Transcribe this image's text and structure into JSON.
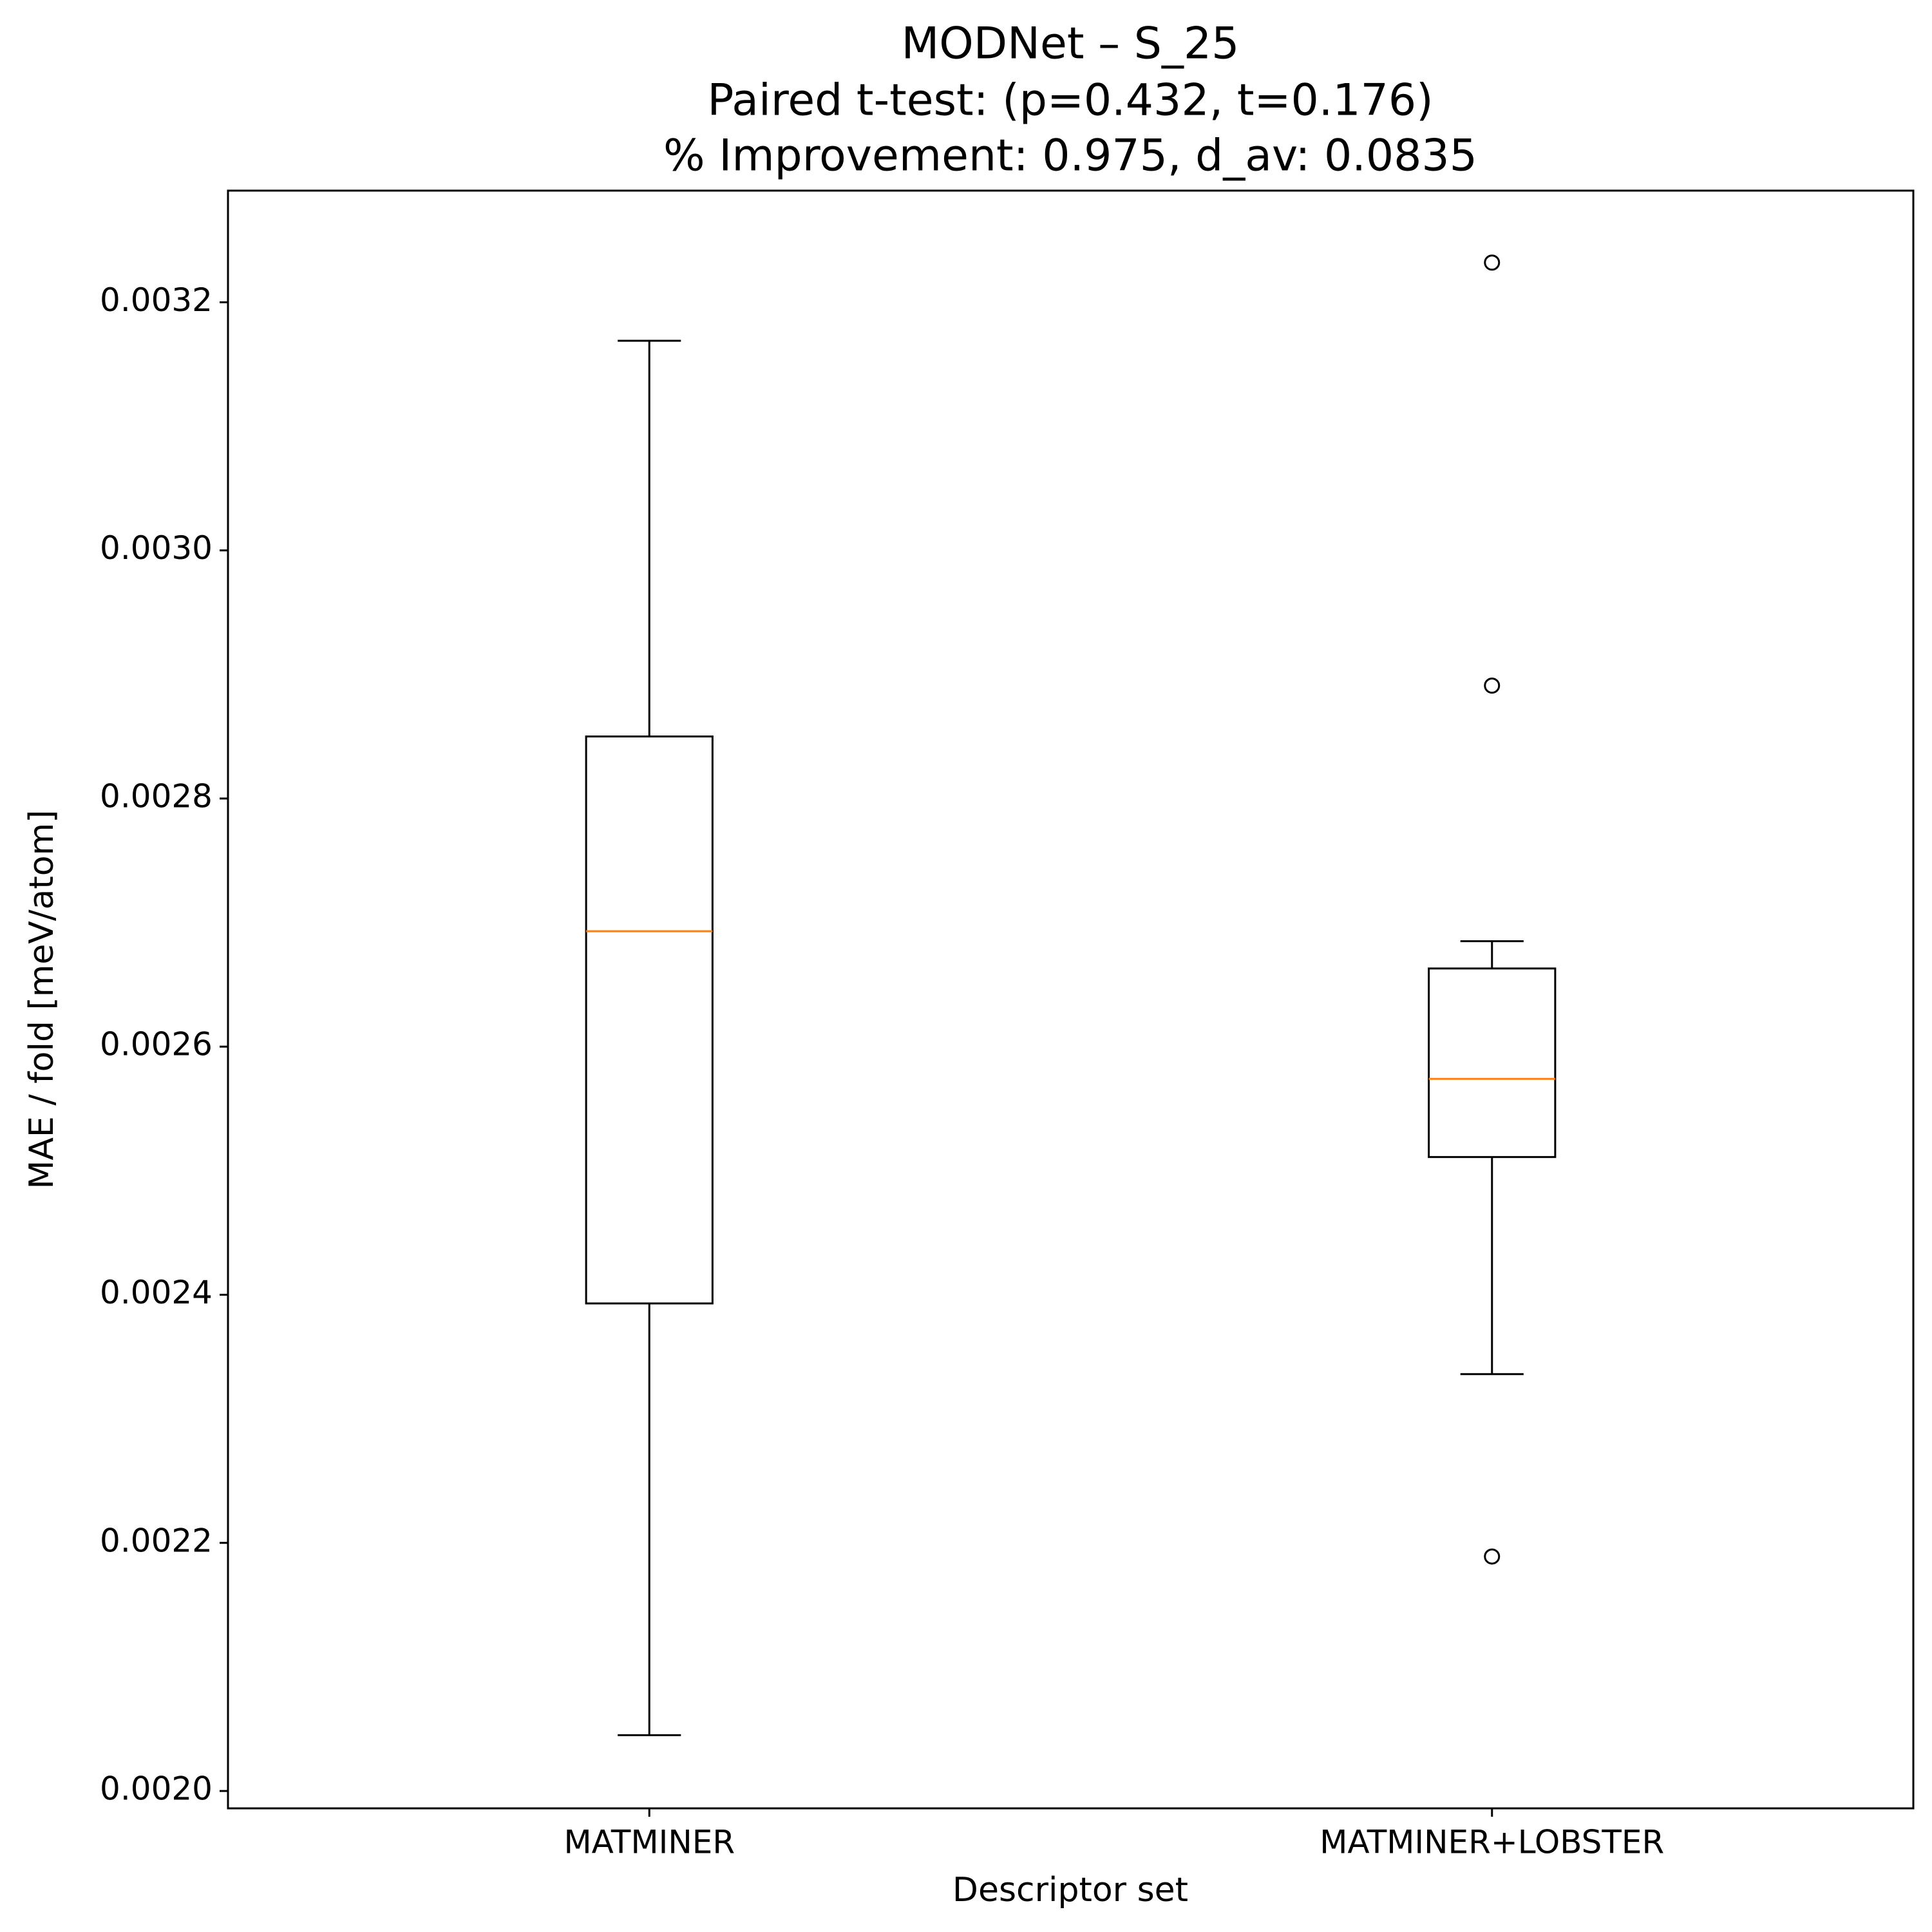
{
  "chart_data": {
    "type": "box",
    "title": [
      "MODNet – S_25",
      "Paired t-test: (p=0.432, t=0.176)",
      "% Improvement: 0.975, d_av: 0.0835"
    ],
    "xlabel": "Descriptor set",
    "ylabel": "MAE / fold [meV/atom]",
    "categories": [
      "MATMINER",
      "MATMINER+LOBSTER"
    ],
    "boxes": [
      {
        "whislo": 0.002045,
        "q1": 0.002393,
        "med": 0.002693,
        "q3": 0.00285,
        "whishi": 0.003169,
        "fliers": []
      },
      {
        "whislo": 0.002336,
        "q1": 0.002511,
        "med": 0.002574,
        "q3": 0.002663,
        "whishi": 0.002685,
        "fliers": [
          0.003232,
          0.002891,
          0.002189
        ]
      }
    ],
    "color": "#000000",
    "median_color": "#ff7f0e",
    "ylim": [
      0.001986,
      0.00329
    ],
    "yticks": [
      {
        "value": 0.002,
        "label": "0.0020"
      },
      {
        "value": 0.0022,
        "label": "0.0022"
      },
      {
        "value": 0.0024,
        "label": "0.0024"
      },
      {
        "value": 0.0026,
        "label": "0.0026"
      },
      {
        "value": 0.0028,
        "label": "0.0028"
      },
      {
        "value": 0.003,
        "label": "0.0030"
      },
      {
        "value": 0.0032,
        "label": "0.0032"
      }
    ],
    "grid": false
  }
}
